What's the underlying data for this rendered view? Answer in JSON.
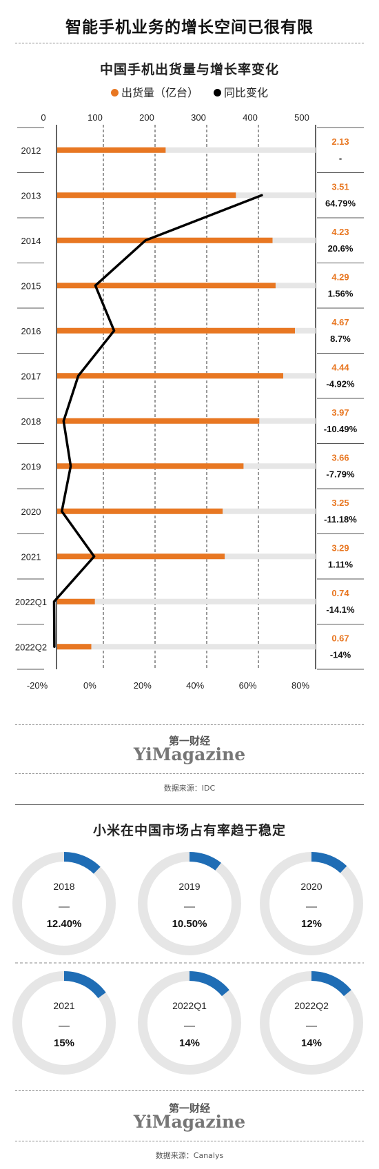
{
  "header": {
    "title": "智能手机业务的增长空间已很有限"
  },
  "chart_data": [
    {
      "type": "bar",
      "title": "中国手机出货量与增长率变化",
      "legend": [
        "出货量（亿台）",
        "同比变化"
      ],
      "categories": [
        "2012",
        "2013",
        "2014",
        "2015",
        "2016",
        "2017",
        "2018",
        "2019",
        "2020",
        "2021",
        "2022Q1",
        "2022Q2"
      ],
      "series": [
        {
          "name": "出货量（亿台）",
          "type": "bar",
          "color": "#E87722",
          "values": [
            2.13,
            3.51,
            4.23,
            4.29,
            4.67,
            4.44,
            3.97,
            3.66,
            3.25,
            3.29,
            0.74,
            0.67
          ],
          "labels": [
            "2.13",
            "3.51",
            "4.23",
            "4.29",
            "4.67",
            "4.44",
            "3.97",
            "3.66",
            "3.25",
            "3.29",
            "0.74",
            "0.67"
          ]
        },
        {
          "name": "同比变化",
          "type": "line",
          "color": "#000000",
          "values": [
            null,
            64.79,
            20.6,
            1.56,
            8.7,
            -4.92,
            -10.49,
            -7.79,
            -11.18,
            1.11,
            -14.1,
            -14
          ],
          "labels": [
            "-",
            "64.79%",
            "20.6%",
            "1.56%",
            "8.7%",
            "-4.92%",
            "-10.49%",
            "-7.79%",
            "-11.18%",
            "1.11%",
            "-14.1%",
            "-14%"
          ]
        }
      ],
      "top_axis": {
        "range": [
          0,
          500
        ],
        "ticks": [
          "0",
          "100",
          "200",
          "300",
          "400",
          "500"
        ]
      },
      "bottom_axis": {
        "range": [
          -20,
          80
        ],
        "ticks": [
          "-20%",
          "0%",
          "20%",
          "40%",
          "60%",
          "80%"
        ]
      },
      "background_bar_color": "#E6E6E6"
    },
    {
      "type": "pie",
      "title": "小米在中国市场占有率趋于稳定",
      "color": "#1F6DB5",
      "track_color": "#E6E6E6",
      "items": [
        {
          "label": "2018",
          "value": 12.4,
          "text": "12.40%"
        },
        {
          "label": "2019",
          "value": 10.5,
          "text": "10.50%"
        },
        {
          "label": "2020",
          "value": 12,
          "text": "12%"
        },
        {
          "label": "2021",
          "value": 15,
          "text": "15%"
        },
        {
          "label": "2022Q1",
          "value": 14,
          "text": "14%"
        },
        {
          "label": "2022Q2",
          "value": 14,
          "text": "14%"
        }
      ]
    }
  ],
  "brand": {
    "cn": "第一财经",
    "en": "YiMagazine"
  },
  "sources": {
    "chart1": "数据来源：IDC",
    "chart2": "数据来源：Canalys"
  }
}
